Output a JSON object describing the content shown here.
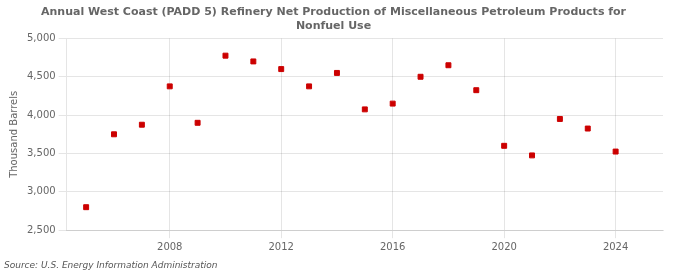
{
  "chart_data": {
    "type": "scatter",
    "title": "Annual West Coast (PADD 5) Refinery Net Production of Miscellaneous Petroleum Products for\nNonfuel Use",
    "ylabel": "Thousand Barrels",
    "source": "Source: U.S. Energy Information Administration",
    "x": [
      2005,
      2006,
      2007,
      2008,
      2009,
      2010,
      2011,
      2012,
      2013,
      2014,
      2015,
      2016,
      2017,
      2018,
      2019,
      2020,
      2021,
      2022,
      2023,
      2024
    ],
    "values": [
      2800,
      3750,
      3875,
      4375,
      3900,
      4775,
      4700,
      4600,
      4375,
      4550,
      4075,
      4150,
      4500,
      4650,
      4325,
      3600,
      3475,
      3950,
      3825,
      3525
    ],
    "color": "#cc0000",
    "marker": "square",
    "ylim": [
      2500,
      5000
    ],
    "yticks": [
      {
        "value": 2500,
        "label": "2,500"
      },
      {
        "value": 3000,
        "label": "3,000"
      },
      {
        "value": 3500,
        "label": "3,500"
      },
      {
        "value": 4000,
        "label": "4,000"
      },
      {
        "value": 4500,
        "label": "4,500"
      },
      {
        "value": 5000,
        "label": "5,000"
      }
    ],
    "xlim": [
      2004.3,
      2025.7
    ],
    "xticks": [
      2008,
      2012,
      2016,
      2020,
      2024
    ],
    "grid": true
  }
}
